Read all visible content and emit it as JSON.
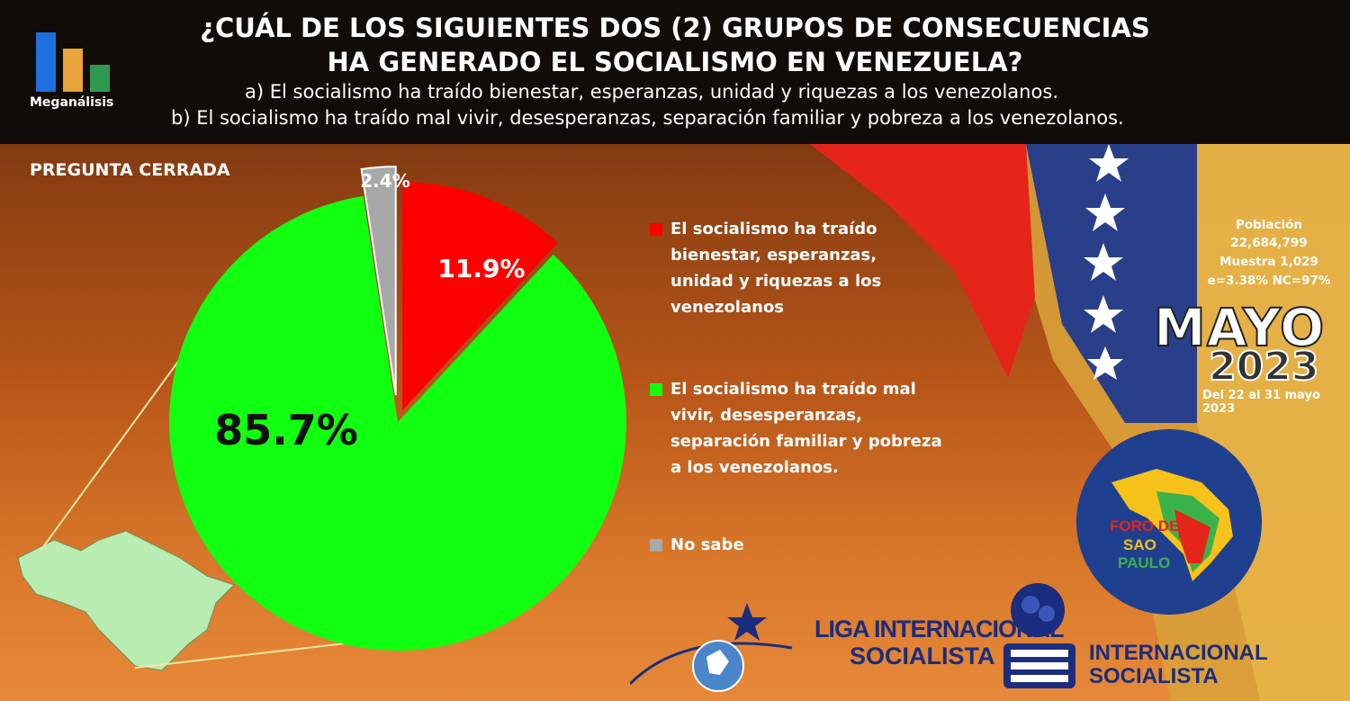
{
  "header": {
    "title_line1": "¿CUÁL DE LOS SIGUIENTES DOS (2) GRUPOS DE CONSECUENCIAS",
    "title_line2": "HA GENERADO EL SOCIALISMO EN VENEZUELA?",
    "option_a": "a)    El socialismo ha traído bienestar, esperanzas, unidad y riquezas a los venezolanos.",
    "option_b": "b) El socialismo ha traído mal vivir, desesperanzas, separación familiar y pobreza a los venezolanos."
  },
  "brand": {
    "name": "Meganálisis",
    "bar_colors": [
      "#1e6fe0",
      "#e8a33a",
      "#2f9a4f"
    ]
  },
  "subtitle": "PREGUNTA  CERRADA",
  "chart_data": {
    "type": "pie",
    "slices": [
      {
        "label": "El socialismo ha traído bienestar, esperanzas, unidad y riquezas a los venezolanos",
        "value": 11.9,
        "display": "11.9%",
        "color": "#ff0000"
      },
      {
        "label": "El socialismo ha traído mal vivir, desesperanzas, separación familiar y pobreza a los venezolanos.",
        "value": 85.7,
        "display": "85.7%",
        "color": "#11ff11"
      },
      {
        "label": "No sabe",
        "value": 2.4,
        "display": "2.4%",
        "color": "#a8a8a8"
      }
    ],
    "legend_placement": "right"
  },
  "survey": {
    "poblacion_label": "Población",
    "poblacion_value": "22,684,799",
    "muestra": "Muestra 1,029",
    "error": "e=3.38%  NC=97%",
    "month": "MAYO",
    "year": "2023",
    "dates": "Del 22 al 31 mayo 2023"
  },
  "logos": {
    "foro_line1": "FORO DE",
    "foro_line2": "SAO",
    "foro_line3": "PAULO",
    "liga_line1": "LIGA INTERNACIONAL",
    "liga_line2": "SOCIALISTA",
    "inter_line1": "INTERNACIONAL",
    "inter_line2": "SOCIALISTA"
  }
}
